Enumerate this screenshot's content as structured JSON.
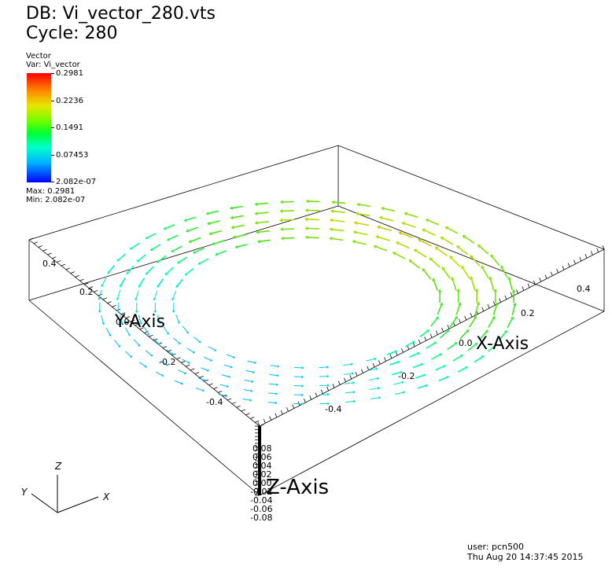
{
  "header": {
    "db_label": "DB: Vi_vector_280.vts",
    "cycle_label": "Cycle: 280"
  },
  "legend": {
    "plot_type": "Vector",
    "var_label": "Var: Vi_vector",
    "ticks": [
      "0.2981",
      "0.2236",
      "0.1491",
      "0.07453",
      "2.082e-07"
    ],
    "max_label": "Max: 0.2981",
    "min_label": "Min: 2.082e-07",
    "colors": [
      "#ff0000",
      "#e6e600",
      "#00ff33",
      "#00b3ff",
      "#0000ff"
    ]
  },
  "axes": {
    "x_title": "X-Axis",
    "y_title": "Y-Axis",
    "z_title": "Z-Axis",
    "x_ticks": [
      "-0.4",
      "-0.2",
      "0.0",
      "0.2",
      "0.4"
    ],
    "y_ticks": [
      "-0.4",
      "-0.2",
      "0.0",
      "0.2",
      "0.4"
    ],
    "z_ticks": [
      "0.08",
      "0.06",
      "0.04",
      "0.02",
      "0.00",
      "-0.02",
      "-0.04",
      "-0.06",
      "-0.08"
    ]
  },
  "triad": {
    "x": "X",
    "y": "Y",
    "z": "Z"
  },
  "footer": {
    "user": "user: pcn500",
    "timestamp": "Thu Aug 20 14:37:45 2015"
  }
}
